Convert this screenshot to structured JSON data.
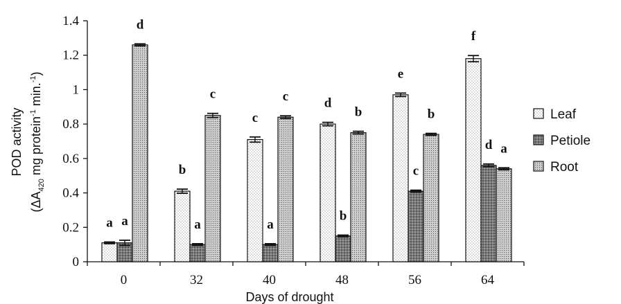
{
  "chart_data": {
    "type": "bar",
    "xlabel": "Days of drought",
    "ylabel_line1": "POD activity",
    "ylabel_line2_prefix": "(ΔA",
    "ylabel_line2_sub": "420",
    "ylabel_line2_mid": " mg protein",
    "ylabel_line2_sup": "-1",
    "ylabel_line2_mid2": " min.",
    "ylabel_line2_sup2": "-1",
    "ylabel_line2_suffix": ")",
    "ylim": [
      0,
      1.4
    ],
    "yticks": [
      "0",
      "0.2",
      "0.4",
      "0.6",
      "0.8",
      "1",
      "1.2",
      "1.4"
    ],
    "categories": [
      "0",
      "32",
      "40",
      "48",
      "56",
      "64"
    ],
    "legend_position": "right",
    "series": [
      {
        "name": "Leaf",
        "pattern": "fine-dots",
        "values": [
          0.11,
          0.41,
          0.71,
          0.8,
          0.97,
          1.18
        ],
        "errors": [
          0.005,
          0.012,
          0.015,
          0.01,
          0.01,
          0.018
        ],
        "letters": [
          "a",
          "b",
          "c",
          "d",
          "e",
          "f"
        ]
      },
      {
        "name": "Petiole",
        "pattern": "dark-dots",
        "values": [
          0.11,
          0.1,
          0.1,
          0.15,
          0.41,
          0.56
        ],
        "errors": [
          0.015,
          0.005,
          0.005,
          0.005,
          0.006,
          0.008
        ],
        "letters": [
          "a",
          "a",
          "a",
          "b",
          "c",
          "d"
        ]
      },
      {
        "name": "Root",
        "pattern": "medium-dots",
        "values": [
          1.26,
          0.85,
          0.84,
          0.75,
          0.74,
          0.54
        ],
        "errors": [
          0.006,
          0.012,
          0.008,
          0.008,
          0.006,
          0.006
        ],
        "letters": [
          "d",
          "c",
          "c",
          "b",
          "b",
          "a"
        ]
      }
    ]
  }
}
